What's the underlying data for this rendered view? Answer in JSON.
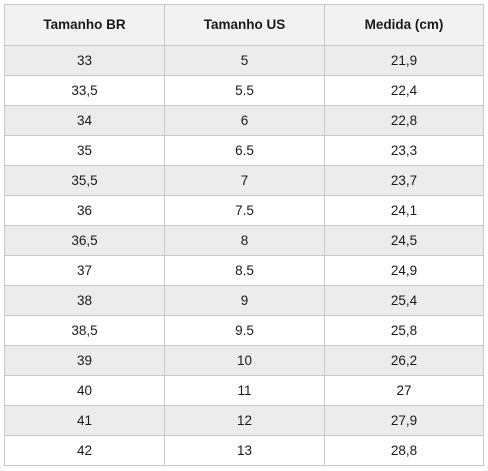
{
  "table": {
    "headers": [
      "Tamanho BR",
      "Tamanho US",
      "Medida (cm)"
    ],
    "rows": [
      [
        "33",
        "5",
        "21,9"
      ],
      [
        "33,5",
        "5.5",
        "22,4"
      ],
      [
        "34",
        "6",
        "22,8"
      ],
      [
        "35",
        "6.5",
        "23,3"
      ],
      [
        "35,5",
        "7",
        "23,7"
      ],
      [
        "36",
        "7.5",
        "24,1"
      ],
      [
        "36,5",
        "8",
        "24,5"
      ],
      [
        "37",
        "8.5",
        "24,9"
      ],
      [
        "38",
        "9",
        "25,4"
      ],
      [
        "38,5",
        "9.5",
        "25,8"
      ],
      [
        "39",
        "10",
        "26,2"
      ],
      [
        "40",
        "11",
        "27"
      ],
      [
        "41",
        "12",
        "27,9"
      ],
      [
        "42",
        "13",
        "28,8"
      ]
    ]
  },
  "colors": {
    "header_bg": "#f2f2f2",
    "stripe_bg": "#ececec",
    "border": "#c9c9c9"
  }
}
